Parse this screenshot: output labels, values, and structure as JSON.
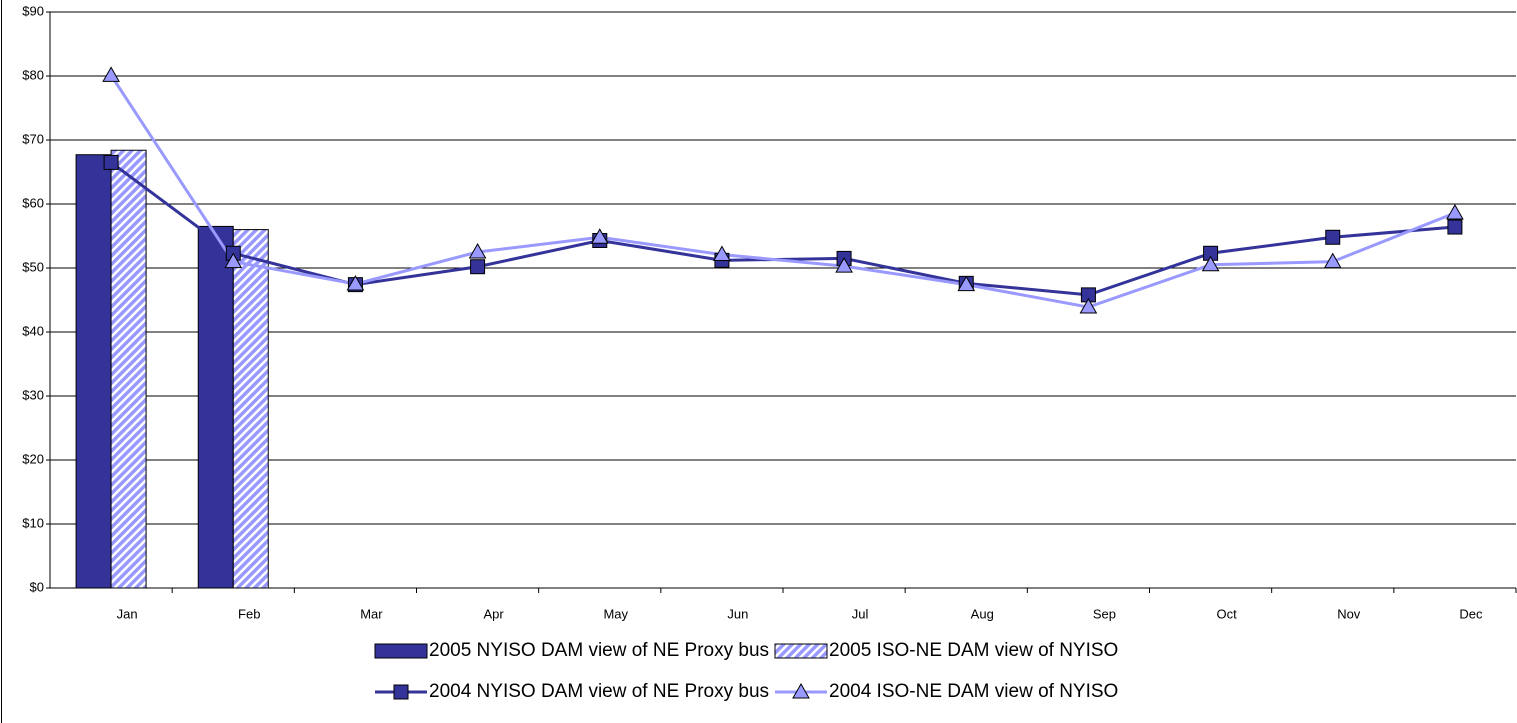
{
  "chart_data": {
    "type": "bar_line",
    "categories": [
      "Jan",
      "Feb",
      "Mar",
      "Apr",
      "May",
      "Jun",
      "Jul",
      "Aug",
      "Sep",
      "Oct",
      "Nov",
      "Dec"
    ],
    "ylim": [
      0,
      90
    ],
    "yticks": [
      {
        "value": 0,
        "label": "$0"
      },
      {
        "value": 10,
        "label": "$10"
      },
      {
        "value": 20,
        "label": "$20"
      },
      {
        "value": 30,
        "label": "$30"
      },
      {
        "value": 40,
        "label": "$40"
      },
      {
        "value": 50,
        "label": "$50"
      },
      {
        "value": 60,
        "label": "$60"
      },
      {
        "value": 70,
        "label": "$70"
      },
      {
        "value": 80,
        "label": "$80"
      },
      {
        "value": 90,
        "label": "$90"
      }
    ],
    "grid": true,
    "legend": "bottom",
    "series": [
      {
        "name": "2005 NYISO DAM view of NE Proxy bus",
        "kind": "bar",
        "color": "#333399",
        "values": [
          67.7,
          56.5,
          null,
          null,
          null,
          null,
          null,
          null,
          null,
          null,
          null,
          null
        ]
      },
      {
        "name": "2005 ISO-NE DAM view of NYISO",
        "kind": "bar",
        "color": "#9999ff",
        "hatch": true,
        "values": [
          68.4,
          56.0,
          null,
          null,
          null,
          null,
          null,
          null,
          null,
          null,
          null,
          null
        ]
      },
      {
        "name": "2004 NYISO DAM view of NE Proxy bus",
        "kind": "line",
        "marker": "square",
        "color": "#333399",
        "values": [
          66.5,
          52.3,
          47.4,
          50.2,
          54.3,
          51.2,
          51.5,
          47.6,
          45.8,
          52.3,
          54.8,
          56.4
        ]
      },
      {
        "name": "2004 ISO-NE DAM view of NYISO",
        "kind": "line",
        "marker": "triangle",
        "color": "#9999ff",
        "values": [
          80.1,
          51.0,
          47.5,
          52.5,
          54.8,
          52.1,
          50.3,
          47.4,
          43.9,
          50.5,
          51.0,
          58.6
        ]
      }
    ]
  }
}
